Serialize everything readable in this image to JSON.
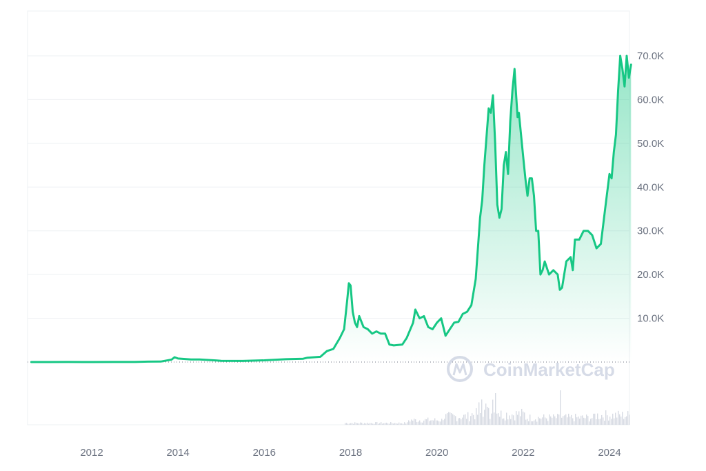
{
  "chart_data": {
    "type": "area",
    "title": "",
    "xlabel": "",
    "ylabel": "",
    "x_range": [
      2010.6,
      2024.5
    ],
    "ylim": [
      0,
      80000
    ],
    "x_ticks": [
      {
        "value": 2012,
        "label": "2012"
      },
      {
        "value": 2014,
        "label": "2014"
      },
      {
        "value": 2016,
        "label": "2016"
      },
      {
        "value": 2018,
        "label": "2018"
      },
      {
        "value": 2020,
        "label": "2020"
      },
      {
        "value": 2022,
        "label": "2022"
      },
      {
        "value": 2024,
        "label": "2024"
      }
    ],
    "y_ticks": [
      {
        "value": 10000,
        "label": "10.0K"
      },
      {
        "value": 20000,
        "label": "20.0K"
      },
      {
        "value": 30000,
        "label": "30.0K"
      },
      {
        "value": 40000,
        "label": "40.0K"
      },
      {
        "value": 50000,
        "label": "50.0K"
      },
      {
        "value": 60000,
        "label": "60.0K"
      },
      {
        "value": 70000,
        "label": "70.0K"
      }
    ],
    "grid": true,
    "watermark": "CoinMarketCap",
    "colors": {
      "line": "#16c784",
      "fill_top": "#16c784",
      "grid": "#eef0f3",
      "baseline": "#6b7280",
      "volume": "#d7dbe3",
      "tick_text": "#6b7280"
    },
    "series": [
      {
        "x": [
          2010.6,
          2011.0,
          2011.45,
          2011.8,
          2012.0,
          2012.5,
          2013.0,
          2013.3,
          2013.6,
          2013.85,
          2013.92,
          2014.0,
          2014.3,
          2014.5,
          2014.9,
          2015.0,
          2015.5,
          2016.0,
          2016.5,
          2016.9,
          2017.0,
          2017.3,
          2017.45,
          2017.6,
          2017.75,
          2017.85,
          2017.92,
          2017.96,
          2018.0,
          2018.05,
          2018.1,
          2018.15,
          2018.2,
          2018.3,
          2018.4,
          2018.5,
          2018.6,
          2018.7,
          2018.8,
          2018.9,
          2019.0,
          2019.2,
          2019.3,
          2019.45,
          2019.5,
          2019.6,
          2019.7,
          2019.8,
          2019.9,
          2020.0,
          2020.1,
          2020.2,
          2020.3,
          2020.4,
          2020.5,
          2020.6,
          2020.7,
          2020.8,
          2020.9,
          2021.0,
          2021.05,
          2021.1,
          2021.2,
          2021.25,
          2021.3,
          2021.35,
          2021.4,
          2021.45,
          2021.5,
          2021.55,
          2021.6,
          2021.65,
          2021.7,
          2021.75,
          2021.8,
          2021.83,
          2021.87,
          2021.9,
          2022.0,
          2022.05,
          2022.1,
          2022.15,
          2022.2,
          2022.25,
          2022.3,
          2022.35,
          2022.4,
          2022.45,
          2022.5,
          2022.6,
          2022.7,
          2022.8,
          2022.85,
          2022.9,
          2023.0,
          2023.1,
          2023.15,
          2023.2,
          2023.3,
          2023.4,
          2023.5,
          2023.6,
          2023.7,
          2023.8,
          2023.9,
          2024.0,
          2024.05,
          2024.1,
          2024.15,
          2024.2,
          2024.25,
          2024.3,
          2024.35,
          2024.4,
          2024.45,
          2024.5
        ],
        "values": [
          0,
          5,
          20,
          5,
          5,
          10,
          13,
          90,
          110,
          550,
          1100,
          800,
          600,
          600,
          350,
          280,
          250,
          400,
          650,
          750,
          1000,
          1200,
          2500,
          3000,
          5500,
          7500,
          14000,
          18000,
          17500,
          11500,
          9000,
          8000,
          10500,
          8000,
          7500,
          6500,
          7000,
          6500,
          6500,
          4000,
          3800,
          4000,
          5500,
          9000,
          12000,
          10000,
          10500,
          8000,
          7500,
          9000,
          10000,
          6000,
          7500,
          9000,
          9200,
          11000,
          11500,
          13000,
          19000,
          33000,
          37000,
          45000,
          58000,
          57000,
          61000,
          50000,
          36000,
          33000,
          35000,
          45000,
          48000,
          43000,
          55000,
          62000,
          67000,
          62000,
          56000,
          57000,
          47000,
          42000,
          38000,
          42000,
          42000,
          38000,
          30000,
          30000,
          20000,
          21000,
          23000,
          20000,
          21000,
          20000,
          16500,
          17000,
          23000,
          24000,
          21000,
          28000,
          28000,
          30000,
          30000,
          29000,
          26000,
          27000,
          35000,
          43000,
          42000,
          48000,
          52000,
          62000,
          70000,
          67000,
          63000,
          70000,
          65000,
          68000
        ]
      }
    ]
  }
}
